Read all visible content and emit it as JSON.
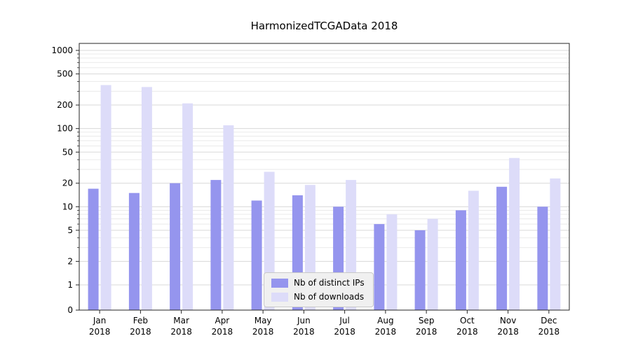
{
  "chart_data": {
    "type": "bar",
    "title": "HarmonizedTCGAData 2018",
    "categories": [
      "Jan",
      "Feb",
      "Mar",
      "Apr",
      "May",
      "Jun",
      "Jul",
      "Aug",
      "Sep",
      "Oct",
      "Nov",
      "Dec"
    ],
    "year": "2018",
    "series": [
      {
        "name": "Nb of distinct IPs",
        "color": "#9595ee",
        "values": [
          17,
          15,
          20,
          22,
          12,
          14,
          10,
          6,
          5,
          9,
          18,
          10
        ]
      },
      {
        "name": "Nb of downloads",
        "color": "#dddcf9",
        "values": [
          360,
          340,
          210,
          110,
          28,
          19,
          22,
          8,
          7,
          16,
          42,
          23
        ]
      }
    ],
    "yscale": "symlog",
    "yticks": [
      0,
      1,
      2,
      5,
      10,
      20,
      50,
      100,
      200,
      500,
      1000
    ],
    "ylim": [
      0,
      1300
    ],
    "xlabel": "",
    "ylabel": "",
    "grid": true,
    "legend_position": "lower center"
  }
}
